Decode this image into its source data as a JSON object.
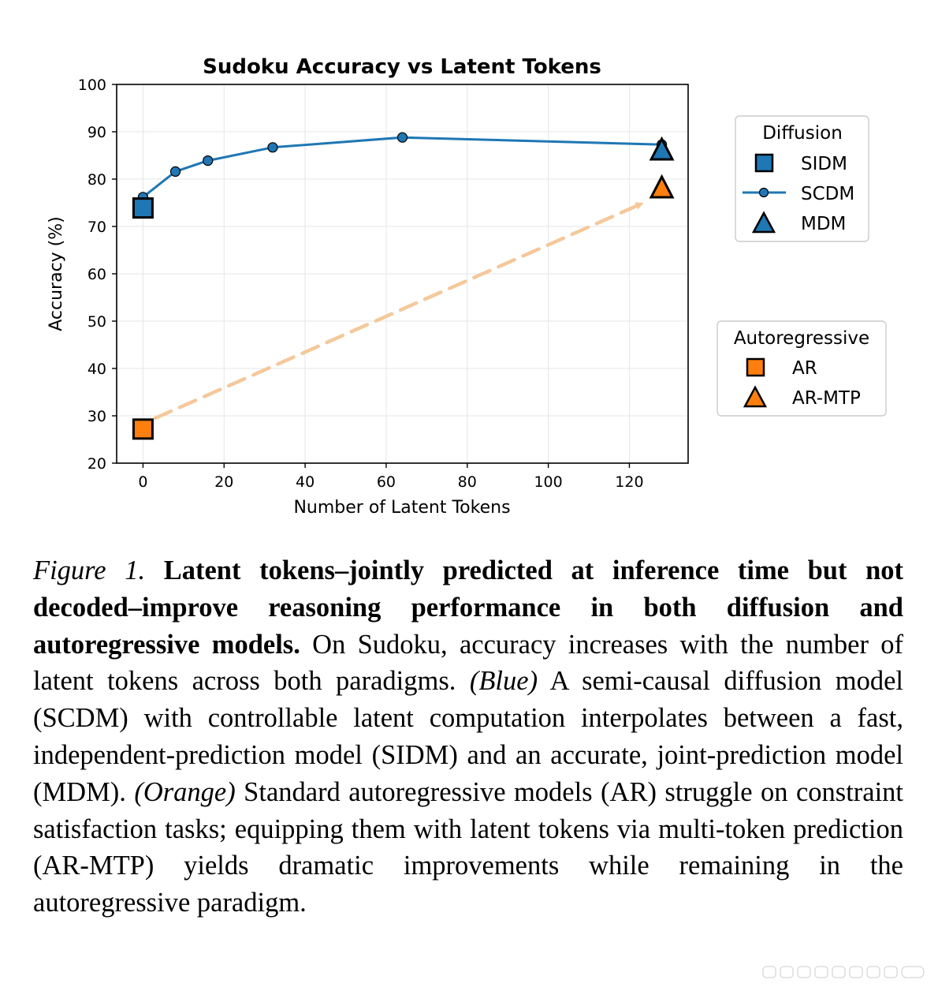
{
  "chart_data": {
    "type": "line",
    "title": "Sudoku Accuracy vs Latent Tokens",
    "xlabel": "Number of Latent Tokens",
    "ylabel": "Accuracy (%)",
    "xlim": [
      -6.5,
      134.5
    ],
    "ylim": [
      20,
      100
    ],
    "xticks": [
      0,
      20,
      40,
      60,
      80,
      100,
      120
    ],
    "yticks": [
      20,
      30,
      40,
      50,
      60,
      70,
      80,
      90,
      100
    ],
    "grid": true,
    "series": [
      {
        "name": "SCDM",
        "marker": "circle",
        "color": "#1f77b4",
        "x": [
          0,
          8,
          16,
          32,
          64,
          128
        ],
        "y": [
          76.2,
          81.6,
          83.9,
          86.7,
          88.8,
          87.3
        ]
      },
      {
        "name": "SIDM",
        "marker": "square",
        "color": "#1f77b4",
        "x": [
          0
        ],
        "y": [
          73.9
        ]
      },
      {
        "name": "MDM",
        "marker": "triangle",
        "color": "#1f77b4",
        "x": [
          128
        ],
        "y": [
          86.0
        ]
      },
      {
        "name": "AR",
        "marker": "square",
        "color": "#ff7f0e",
        "x": [
          0
        ],
        "y": [
          27.2
        ]
      },
      {
        "name": "AR-MTP",
        "marker": "triangle",
        "color": "#ff7f0e",
        "x": [
          128
        ],
        "y": [
          78.0
        ]
      }
    ],
    "annotations": [
      {
        "type": "dashed-arrow",
        "color": "#f5c89a",
        "from": [
          3,
          29.5
        ],
        "to": [
          123,
          74.8
        ]
      }
    ],
    "legends": [
      {
        "title": "Diffusion",
        "placement": "right-top",
        "entries": [
          "SIDM",
          "SCDM",
          "MDM"
        ]
      },
      {
        "title": "Autoregressive",
        "placement": "right-middle",
        "entries": [
          "AR",
          "AR-MTP"
        ]
      }
    ]
  },
  "caption": {
    "figure_label": "Figure 1.",
    "bold_text": "Latent tokens–jointly predicted at inference time but not decoded–improve reasoning performance in both diffusion and autoregressive models.",
    "text_1": "On Sudoku, accuracy increases with the number of latent tokens across both paradigms.",
    "blue_label": "(Blue)",
    "text_2": "A semi-causal diffusion model (SCDM) with controllable latent computation interpolates between a fast, independent-prediction model (SIDM) and an accurate, joint-prediction model (MDM).",
    "orange_label": "(Orange)",
    "text_3": "Standard autoregressive models (AR) struggle on constraint satisfaction tasks; equipping them with latent tokens via multi-token prediction (AR-MTP) yields dramatic improvements while remaining in the autoregressive paradigm."
  }
}
